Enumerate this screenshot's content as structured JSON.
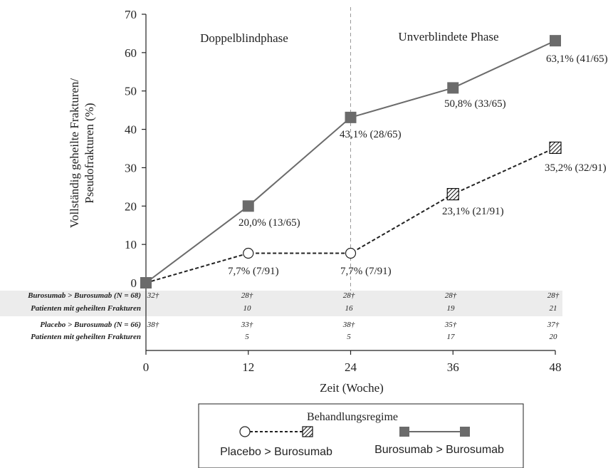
{
  "chart_data": {
    "type": "line",
    "ylabel_line1": "Vollständig geheilte Frakturen/",
    "ylabel_line2": "Pseudofrakturen (%)",
    "xlabel": "Zeit (Woche)",
    "xlim": [
      0,
      48
    ],
    "ylim": [
      0,
      70
    ],
    "x_ticks": [
      0,
      12,
      24,
      36,
      48
    ],
    "y_ticks": [
      0,
      10,
      20,
      30,
      40,
      50,
      60,
      70
    ],
    "grid": false,
    "phase_divider_x": 24,
    "phases": [
      "Doppelblindphase",
      "Unverblindete Phase"
    ],
    "series": [
      {
        "name": "Burosumab > Burosumab",
        "color": "#6b6b6b",
        "line_style": "solid",
        "marker": "filled-square",
        "x": [
          0,
          12,
          24,
          36,
          48
        ],
        "y": [
          0,
          20.0,
          43.1,
          50.8,
          63.1
        ],
        "labels": [
          "",
          "20,0% (13/65)",
          "43,1% (28/65)",
          "50,8% (33/65)",
          "63,1% (41/65)"
        ]
      },
      {
        "name": "Placebo > Burosumab",
        "color": "#222222",
        "line_style": "dashed",
        "marker_sequence": [
          "filled-square",
          "open-circle",
          "open-circle",
          "hatched-square",
          "hatched-square"
        ],
        "x": [
          0,
          12,
          24,
          36,
          48
        ],
        "y": [
          0,
          7.7,
          7.7,
          23.1,
          35.2
        ],
        "labels": [
          "",
          "7,7% (7/91)",
          "7,7% (7/91)",
          "23,1% (21/91)",
          "35,2% (32/91)"
        ]
      }
    ],
    "legend": {
      "title": "Behandlungsregime",
      "placement": "bottom-center",
      "entries": [
        "Placebo > Burosumab",
        "Burosumab > Burosumab"
      ]
    },
    "table": {
      "rows": [
        {
          "label": "Burosumab > Burosumab (N = 68)",
          "values": [
            "32†",
            "28†",
            "28†",
            "28†",
            "28†"
          ],
          "shaded": true
        },
        {
          "label": "Patienten mit geheilten Frakturen",
          "values": [
            "",
            "10",
            "16",
            "19",
            "21"
          ],
          "shaded": true
        },
        {
          "label": "Placebo > Burosumab (N = 66)",
          "values": [
            "38†",
            "33†",
            "38†",
            "35†",
            "37†"
          ],
          "shaded": false
        },
        {
          "label": "Patienten mit geheilten Frakturen",
          "values": [
            "",
            "5",
            "5",
            "17",
            "20"
          ],
          "shaded": false
        }
      ]
    }
  }
}
